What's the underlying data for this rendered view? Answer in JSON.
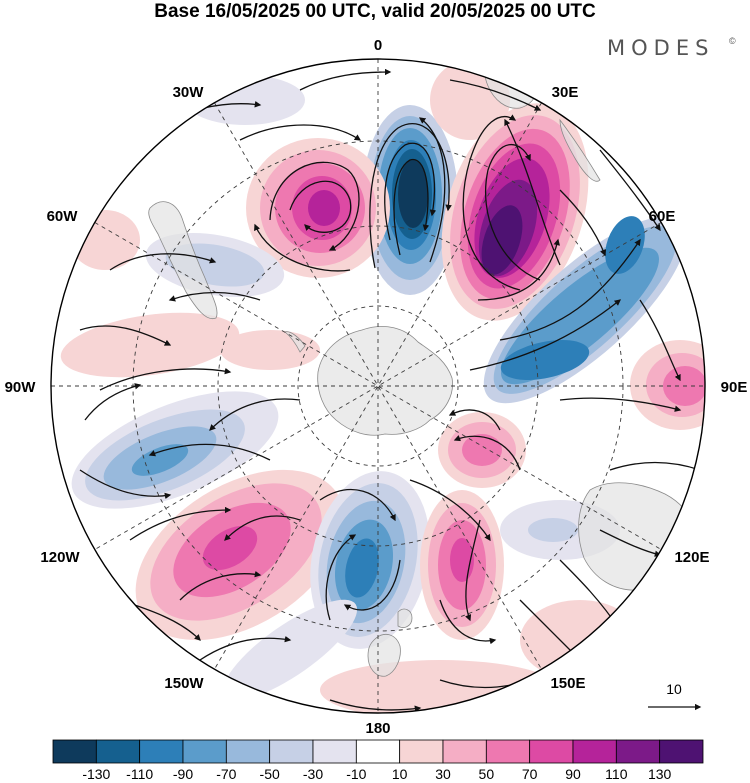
{
  "title": "Base 16/05/2025 00 UTC, valid 20/05/2025 00 UTC",
  "logo": "MODES",
  "logo_mark": "©",
  "longitude_labels": {
    "top": "0",
    "lon_30e": "30E",
    "lon_60e": "60E",
    "lon_90e": "90E",
    "lon_120e": "120E",
    "lon_150e": "150E",
    "bottom": "180",
    "lon_150w": "150W",
    "lon_120w": "120W",
    "lon_90w": "90W",
    "lon_60w": "60W",
    "lon_30w": "30W"
  },
  "reference_vector": {
    "label": "10"
  },
  "colorbar": {
    "labels": [
      "-130",
      "-110",
      "-90",
      "-70",
      "-50",
      "-30",
      "-10",
      "10",
      "30",
      "50",
      "70",
      "90",
      "110",
      "130"
    ],
    "colors": [
      "#0e3a5c",
      "#15608f",
      "#2d7fb8",
      "#5b9ccb",
      "#98b9dc",
      "#c6d0e6",
      "#e4e3ef",
      "#ffffff",
      "#f7d5d5",
      "#f5aec5",
      "#ee78b0",
      "#dd4aa4",
      "#b5239a",
      "#7c1a88",
      "#4e1272"
    ]
  },
  "colors": {
    "land": "#e6e6e6",
    "coast": "#8a8a8a",
    "grid": "#3a3a3a",
    "vector": "#111111"
  }
}
